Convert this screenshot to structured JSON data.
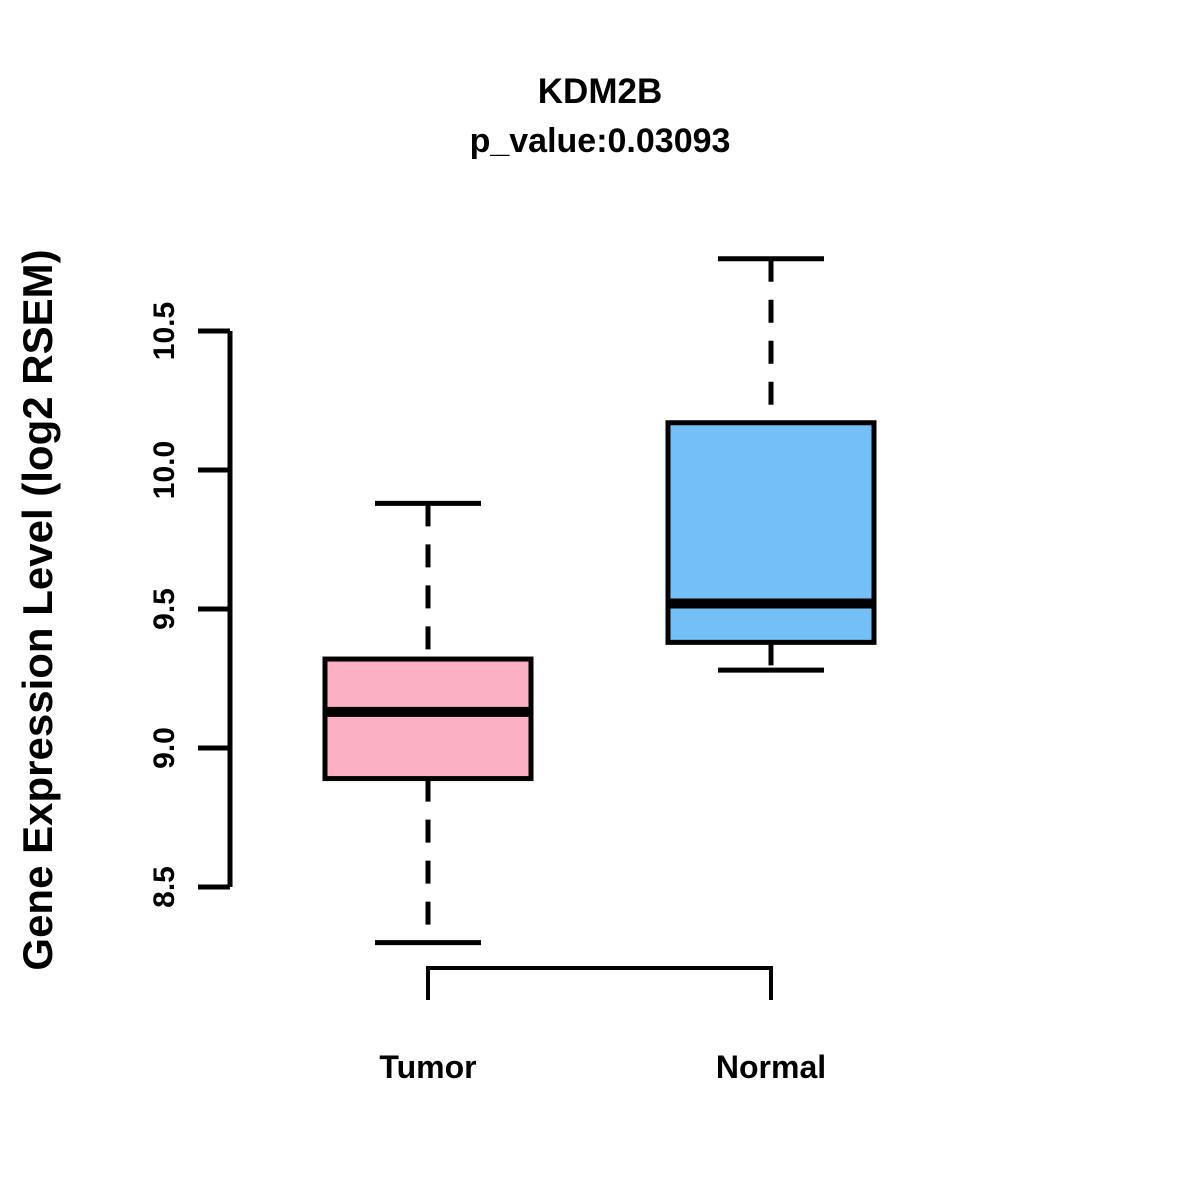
{
  "header": {
    "title": "KDM2B",
    "subtitle": "p_value:0.03093"
  },
  "chart_data": {
    "type": "boxplot",
    "title": "KDM2B",
    "subtitle": "p_value:0.03093",
    "ylabel": "Gene Expression Level (log2 RSEM)",
    "xlabel": "",
    "categories": [
      "Tumor",
      "Normal"
    ],
    "yticks": [
      8.5,
      9.0,
      9.5,
      10.0,
      10.5
    ],
    "ytick_labels": [
      "8.5",
      "9.0",
      "9.5",
      "10.0",
      "10.5"
    ],
    "ylim": [
      8.5,
      10.5
    ],
    "grid": false,
    "legend_position": "none",
    "comparison_bracket": true,
    "colors": {
      "tumor_fill": "#FBB0C4",
      "normal_fill": "#73BFF6",
      "line": "#000000",
      "background": "#FFFFFF"
    },
    "series": [
      {
        "name": "Tumor",
        "color": "#FBB0C4",
        "whisker_low": 8.3,
        "q1": 8.89,
        "median": 9.13,
        "q3": 9.32,
        "whisker_high": 9.88
      },
      {
        "name": "Normal",
        "color": "#73BFF6",
        "whisker_low": 9.28,
        "q1": 9.38,
        "median": 9.52,
        "q3": 10.17,
        "whisker_high": 10.76
      }
    ]
  }
}
